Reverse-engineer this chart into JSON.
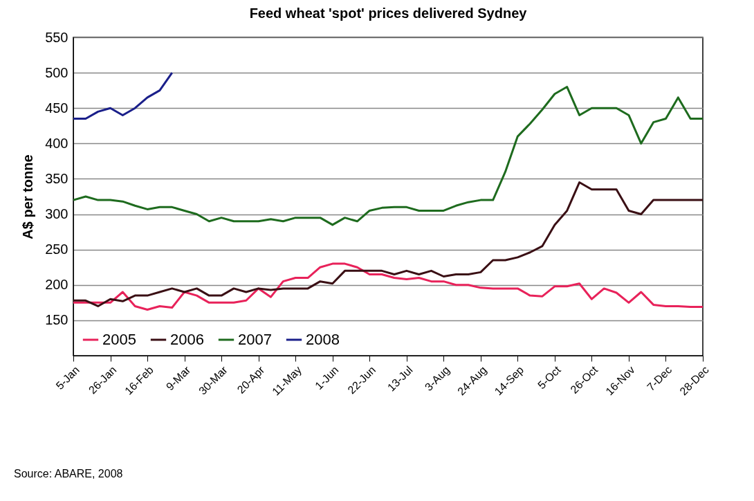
{
  "chart_data": {
    "type": "line",
    "title": "Feed wheat 'spot' prices delivered Sydney",
    "ylabel": "A$ per tonne",
    "categories": [
      "5-Jan",
      null,
      null,
      "26-Jan",
      null,
      null,
      "16-Feb",
      null,
      null,
      "9-Mar",
      null,
      null,
      "30-Mar",
      null,
      null,
      "20-Apr",
      null,
      null,
      "11-May",
      null,
      null,
      "1-Jun",
      null,
      null,
      "22-Jun",
      null,
      null,
      "13-Jul",
      null,
      null,
      "3-Aug",
      null,
      null,
      "24-Aug",
      null,
      null,
      "14-Sep",
      null,
      null,
      "5-Oct",
      null,
      null,
      "26-Oct",
      null,
      null,
      "16-Nov",
      null,
      null,
      "7-Dec",
      null,
      null,
      "28-Dec"
    ],
    "series": [
      {
        "name": "2005",
        "color": "#e8225a",
        "values": [
          175,
          175,
          175,
          175,
          190,
          170,
          165,
          170,
          168,
          190,
          185,
          175,
          175,
          175,
          178,
          195,
          183,
          205,
          210,
          210,
          225,
          230,
          230,
          225,
          215,
          215,
          210,
          208,
          210,
          205,
          205,
          200,
          200,
          196,
          195,
          195,
          195,
          185,
          184,
          198,
          198,
          202,
          180,
          195,
          189,
          175,
          190,
          172,
          170,
          170,
          169,
          169
        ]
      },
      {
        "name": "2006",
        "color": "#3a0f14",
        "values": [
          178,
          178,
          170,
          180,
          177,
          185,
          185,
          190,
          195,
          190,
          195,
          185,
          185,
          195,
          190,
          195,
          193,
          195,
          195,
          195,
          205,
          202,
          220,
          220,
          220,
          220,
          215,
          220,
          215,
          220,
          212,
          215,
          215,
          218,
          235,
          235,
          239,
          246,
          255,
          285,
          305,
          345,
          335,
          335,
          335,
          305,
          300,
          320,
          320,
          320,
          320,
          320
        ]
      },
      {
        "name": "2007",
        "color": "#1e6b1e",
        "values": [
          320,
          325,
          320,
          320,
          318,
          312,
          307,
          310,
          310,
          305,
          300,
          290,
          295,
          290,
          290,
          290,
          293,
          290,
          295,
          295,
          295,
          285,
          295,
          290,
          305,
          309,
          310,
          310,
          305,
          305,
          305,
          312,
          317,
          320,
          320,
          360,
          410,
          428,
          448,
          470,
          480,
          440,
          450,
          450,
          450,
          440,
          400,
          430,
          435,
          465,
          435,
          435
        ]
      },
      {
        "name": "2008",
        "color": "#1a1f8a",
        "values": [
          435,
          435,
          445,
          450,
          440,
          450,
          465,
          475,
          500,
          null,
          null,
          null,
          null,
          null,
          null,
          null,
          null,
          null,
          null,
          null,
          null,
          null,
          null,
          null,
          null,
          null,
          null,
          null,
          null,
          null,
          null,
          null,
          null,
          null,
          null,
          null,
          null,
          null,
          null,
          null,
          null,
          null,
          null,
          null,
          null,
          null,
          null,
          null,
          null,
          null,
          null,
          null
        ]
      }
    ],
    "ylim": [
      100,
      550
    ],
    "yticks": [
      150,
      200,
      250,
      300,
      350,
      400,
      450,
      500,
      550
    ],
    "grid": "y",
    "legend": "bottom left",
    "marker": "none",
    "line_style": "solid",
    "annotations": [
      "Source: ABARE, 2008"
    ]
  }
}
